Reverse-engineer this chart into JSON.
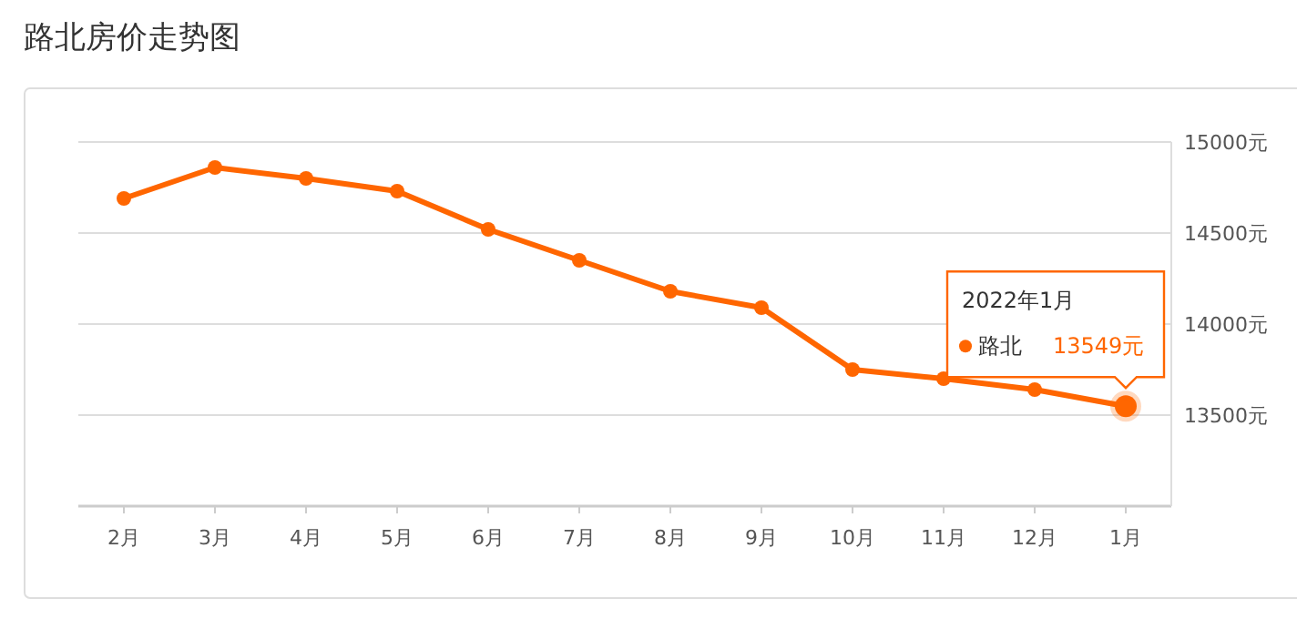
{
  "chart_data": {
    "type": "line",
    "title": "路北房价走势图",
    "categories": [
      "2月",
      "3月",
      "4月",
      "5月",
      "6月",
      "7月",
      "8月",
      "9月",
      "10月",
      "11月",
      "12月",
      "1月"
    ],
    "series": [
      {
        "name": "路北",
        "color": "#ff6600",
        "values": [
          14690,
          14860,
          14800,
          14730,
          14520,
          14350,
          14180,
          14090,
          13750,
          13700,
          13640,
          13549
        ],
        "value_labels": [
          null,
          null,
          null,
          null,
          null,
          null,
          null,
          null,
          null,
          null,
          null,
          "13549元"
        ]
      }
    ],
    "ylim": [
      13000,
      15000
    ],
    "yticks": [
      {
        "value": 13500,
        "label": "13500元"
      },
      {
        "value": 14000,
        "label": "14000元"
      },
      {
        "value": 14500,
        "label": "14500元"
      },
      {
        "value": 15000,
        "label": "15000元"
      }
    ],
    "annotations": [
      "2022年1月"
    ],
    "grid": "y",
    "legend": "right",
    "marker": "circle",
    "line_style": "solid"
  }
}
